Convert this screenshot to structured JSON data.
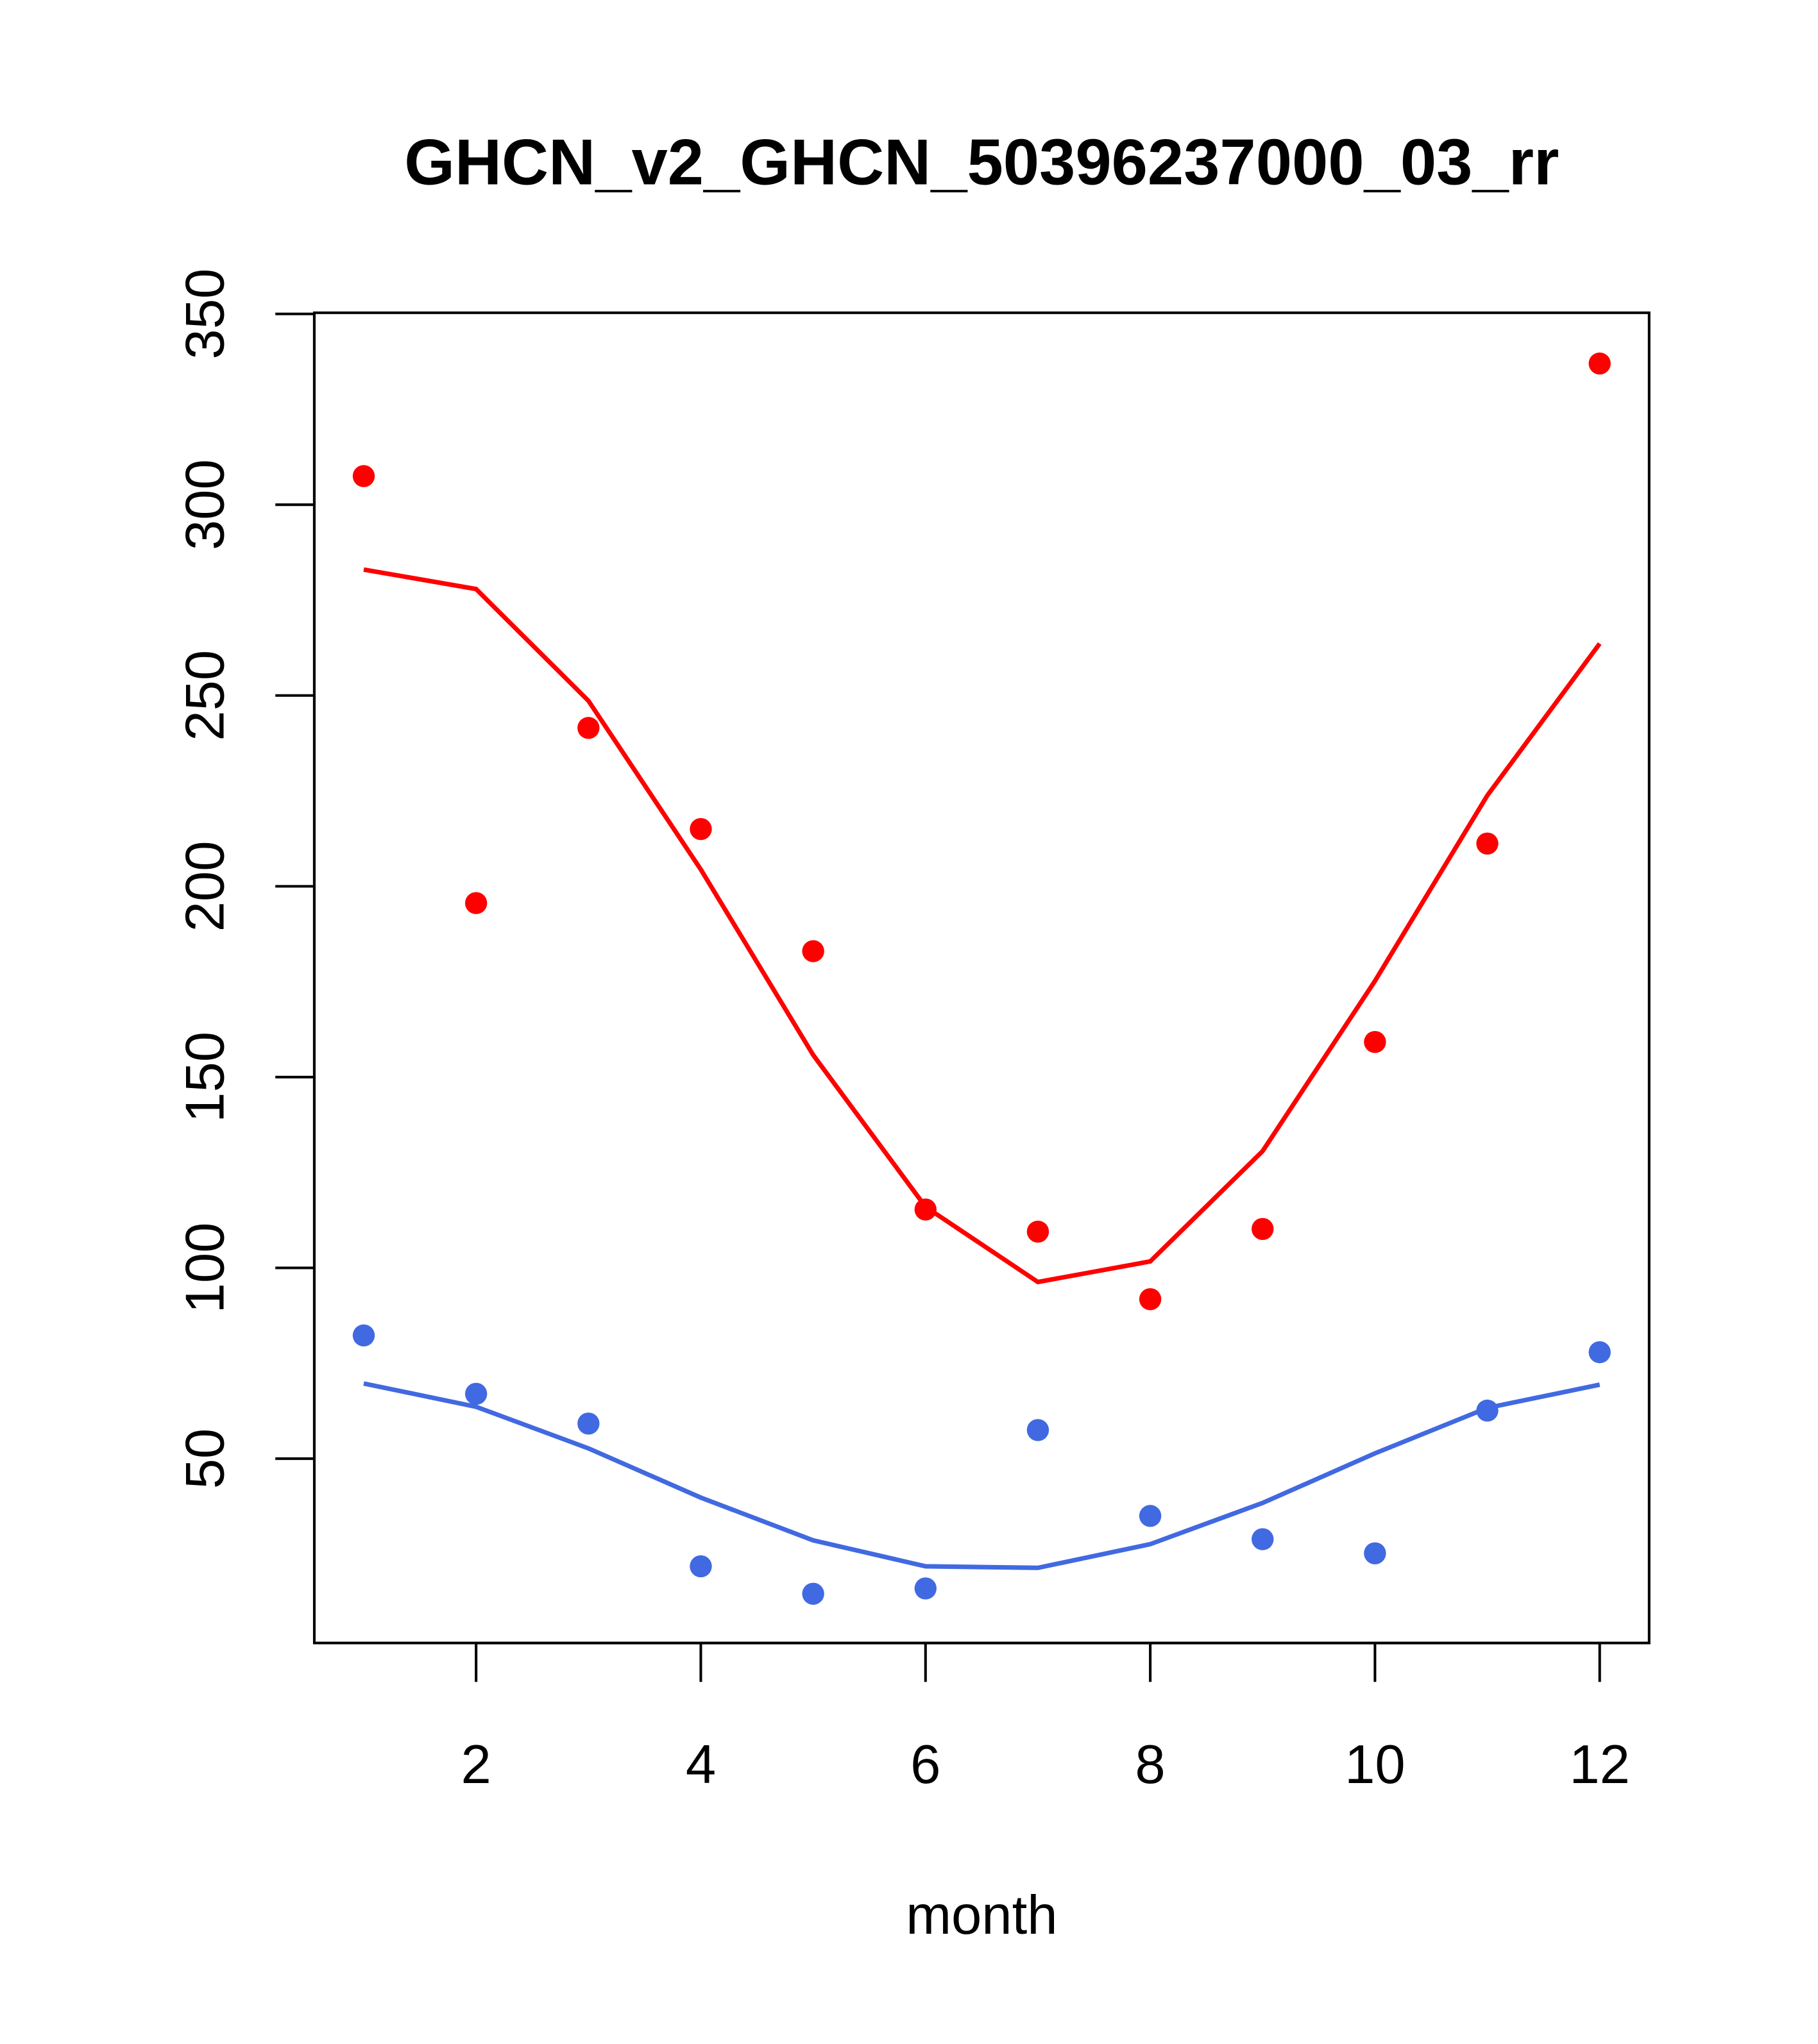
{
  "chart_data": {
    "type": "scatter",
    "title": "GHCN_v2_GHCN_50396237000_03_rr",
    "xlabel": "month",
    "ylabel": "",
    "xlim": [
      0.56,
      12.44
    ],
    "ylim": [
      1.7,
      350.3
    ],
    "x_ticks": [
      2,
      4,
      6,
      8,
      10,
      12
    ],
    "y_ticks": [
      50,
      100,
      150,
      200,
      250,
      300,
      350
    ],
    "grid": false,
    "x": [
      1,
      2,
      3,
      4,
      5,
      6,
      7,
      8,
      9,
      10,
      11,
      12
    ],
    "series": [
      {
        "name": "red points",
        "kind": "points",
        "color": "#ff0000",
        "values": [
          307.5,
          195.6,
          241.5,
          215,
          183,
          115.3,
          109.5,
          91.8,
          110.2,
          159.2,
          211.2,
          337
        ]
      },
      {
        "name": "red line",
        "kind": "line",
        "color": "#ff0000",
        "values": [
          283,
          277.9,
          248.6,
          204.4,
          155.8,
          116,
          96.3,
          101.7,
          130.6,
          175.2,
          223.8,
          263.6
        ]
      },
      {
        "name": "blue points",
        "kind": "points",
        "color": "#4169e1",
        "values": [
          82.3,
          67,
          59.2,
          21.8,
          14.6,
          16,
          57.5,
          35,
          28.9,
          25.2,
          62.6,
          77.9
        ]
      },
      {
        "name": "blue line",
        "kind": "line",
        "color": "#4169e1",
        "values": [
          69.7,
          63.6,
          52.7,
          39.8,
          28.6,
          21.8,
          21.4,
          27.6,
          38.4,
          51.4,
          63.3,
          69.4
        ]
      }
    ]
  }
}
